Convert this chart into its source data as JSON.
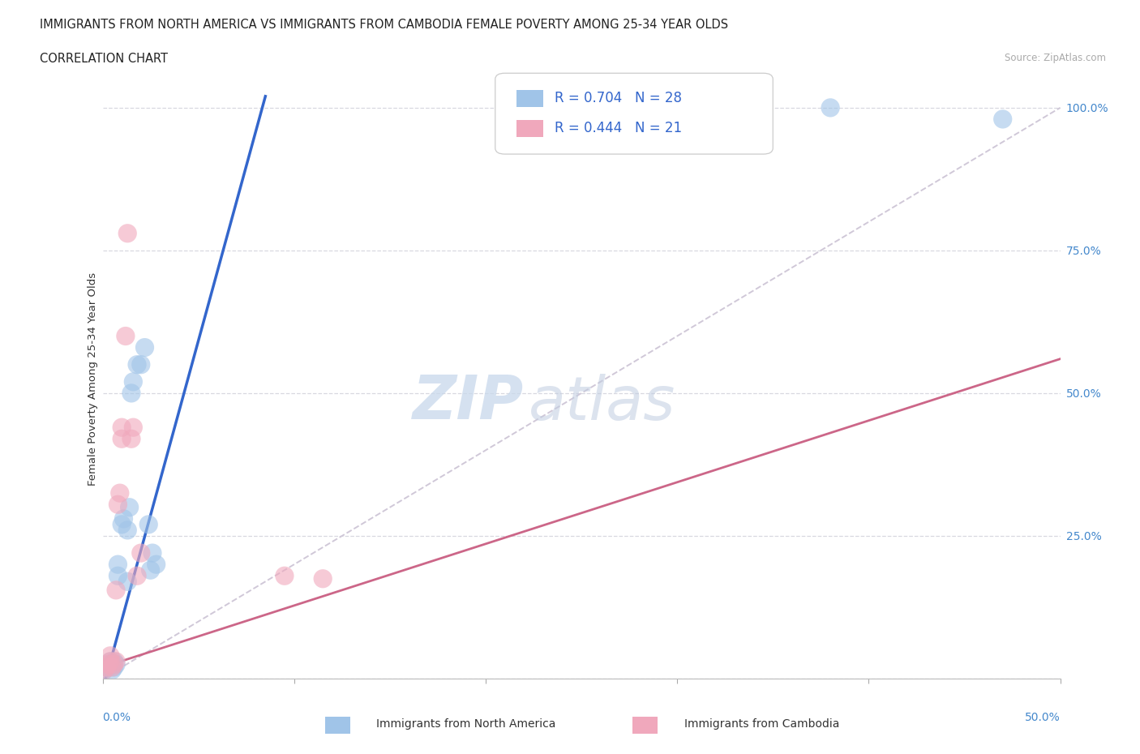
{
  "title_line1": "IMMIGRANTS FROM NORTH AMERICA VS IMMIGRANTS FROM CAMBODIA FEMALE POVERTY AMONG 25-34 YEAR OLDS",
  "title_line2": "CORRELATION CHART",
  "source_text": "Source: ZipAtlas.com",
  "ylabel": "Female Poverty Among 25-34 Year Olds",
  "watermark_zip": "ZIP",
  "watermark_atlas": "atlas",
  "legend_label_blue": "Immigrants from North America",
  "legend_label_pink": "Immigrants from Cambodia",
  "blue_color": "#a0c4e8",
  "pink_color": "#f0a8bc",
  "line_blue": "#3366cc",
  "line_pink": "#cc6688",
  "line_diag_color": "#d0c8d8",
  "tick_color": "#4488cc",
  "ytick_vals": [
    0.0,
    0.25,
    0.5,
    0.75,
    1.0
  ],
  "ytick_labels": [
    "",
    "25.0%",
    "50.0%",
    "75.0%",
    "100.0%"
  ],
  "xlim": [
    0.0,
    0.5
  ],
  "ylim": [
    0.0,
    1.05
  ],
  "blue_points": [
    [
      0.001,
      0.015
    ],
    [
      0.002,
      0.02
    ],
    [
      0.003,
      0.02
    ],
    [
      0.004,
      0.025
    ],
    [
      0.004,
      0.03
    ],
    [
      0.005,
      0.015
    ],
    [
      0.005,
      0.025
    ],
    [
      0.006,
      0.02
    ],
    [
      0.006,
      0.03
    ],
    [
      0.007,
      0.025
    ],
    [
      0.008,
      0.18
    ],
    [
      0.008,
      0.2
    ],
    [
      0.01,
      0.27
    ],
    [
      0.011,
      0.28
    ],
    [
      0.013,
      0.17
    ],
    [
      0.013,
      0.26
    ],
    [
      0.014,
      0.3
    ],
    [
      0.015,
      0.5
    ],
    [
      0.016,
      0.52
    ],
    [
      0.018,
      0.55
    ],
    [
      0.02,
      0.55
    ],
    [
      0.022,
      0.58
    ],
    [
      0.024,
      0.27
    ],
    [
      0.025,
      0.19
    ],
    [
      0.026,
      0.22
    ],
    [
      0.028,
      0.2
    ],
    [
      0.38,
      1.0
    ],
    [
      0.47,
      0.98
    ]
  ],
  "pink_points": [
    [
      0.001,
      0.015
    ],
    [
      0.002,
      0.02
    ],
    [
      0.003,
      0.025
    ],
    [
      0.004,
      0.03
    ],
    [
      0.004,
      0.04
    ],
    [
      0.005,
      0.02
    ],
    [
      0.006,
      0.025
    ],
    [
      0.007,
      0.03
    ],
    [
      0.007,
      0.155
    ],
    [
      0.008,
      0.305
    ],
    [
      0.009,
      0.325
    ],
    [
      0.01,
      0.42
    ],
    [
      0.01,
      0.44
    ],
    [
      0.012,
      0.6
    ],
    [
      0.013,
      0.78
    ],
    [
      0.015,
      0.42
    ],
    [
      0.016,
      0.44
    ],
    [
      0.018,
      0.18
    ],
    [
      0.02,
      0.22
    ],
    [
      0.095,
      0.18
    ],
    [
      0.115,
      0.175
    ]
  ],
  "blue_line": [
    [
      0.0,
      -0.02
    ],
    [
      0.085,
      1.02
    ]
  ],
  "pink_line": [
    [
      0.0,
      0.02
    ],
    [
      0.5,
      0.56
    ]
  ],
  "diag_line": [
    [
      0.0,
      0.0
    ],
    [
      0.5,
      1.0
    ]
  ]
}
